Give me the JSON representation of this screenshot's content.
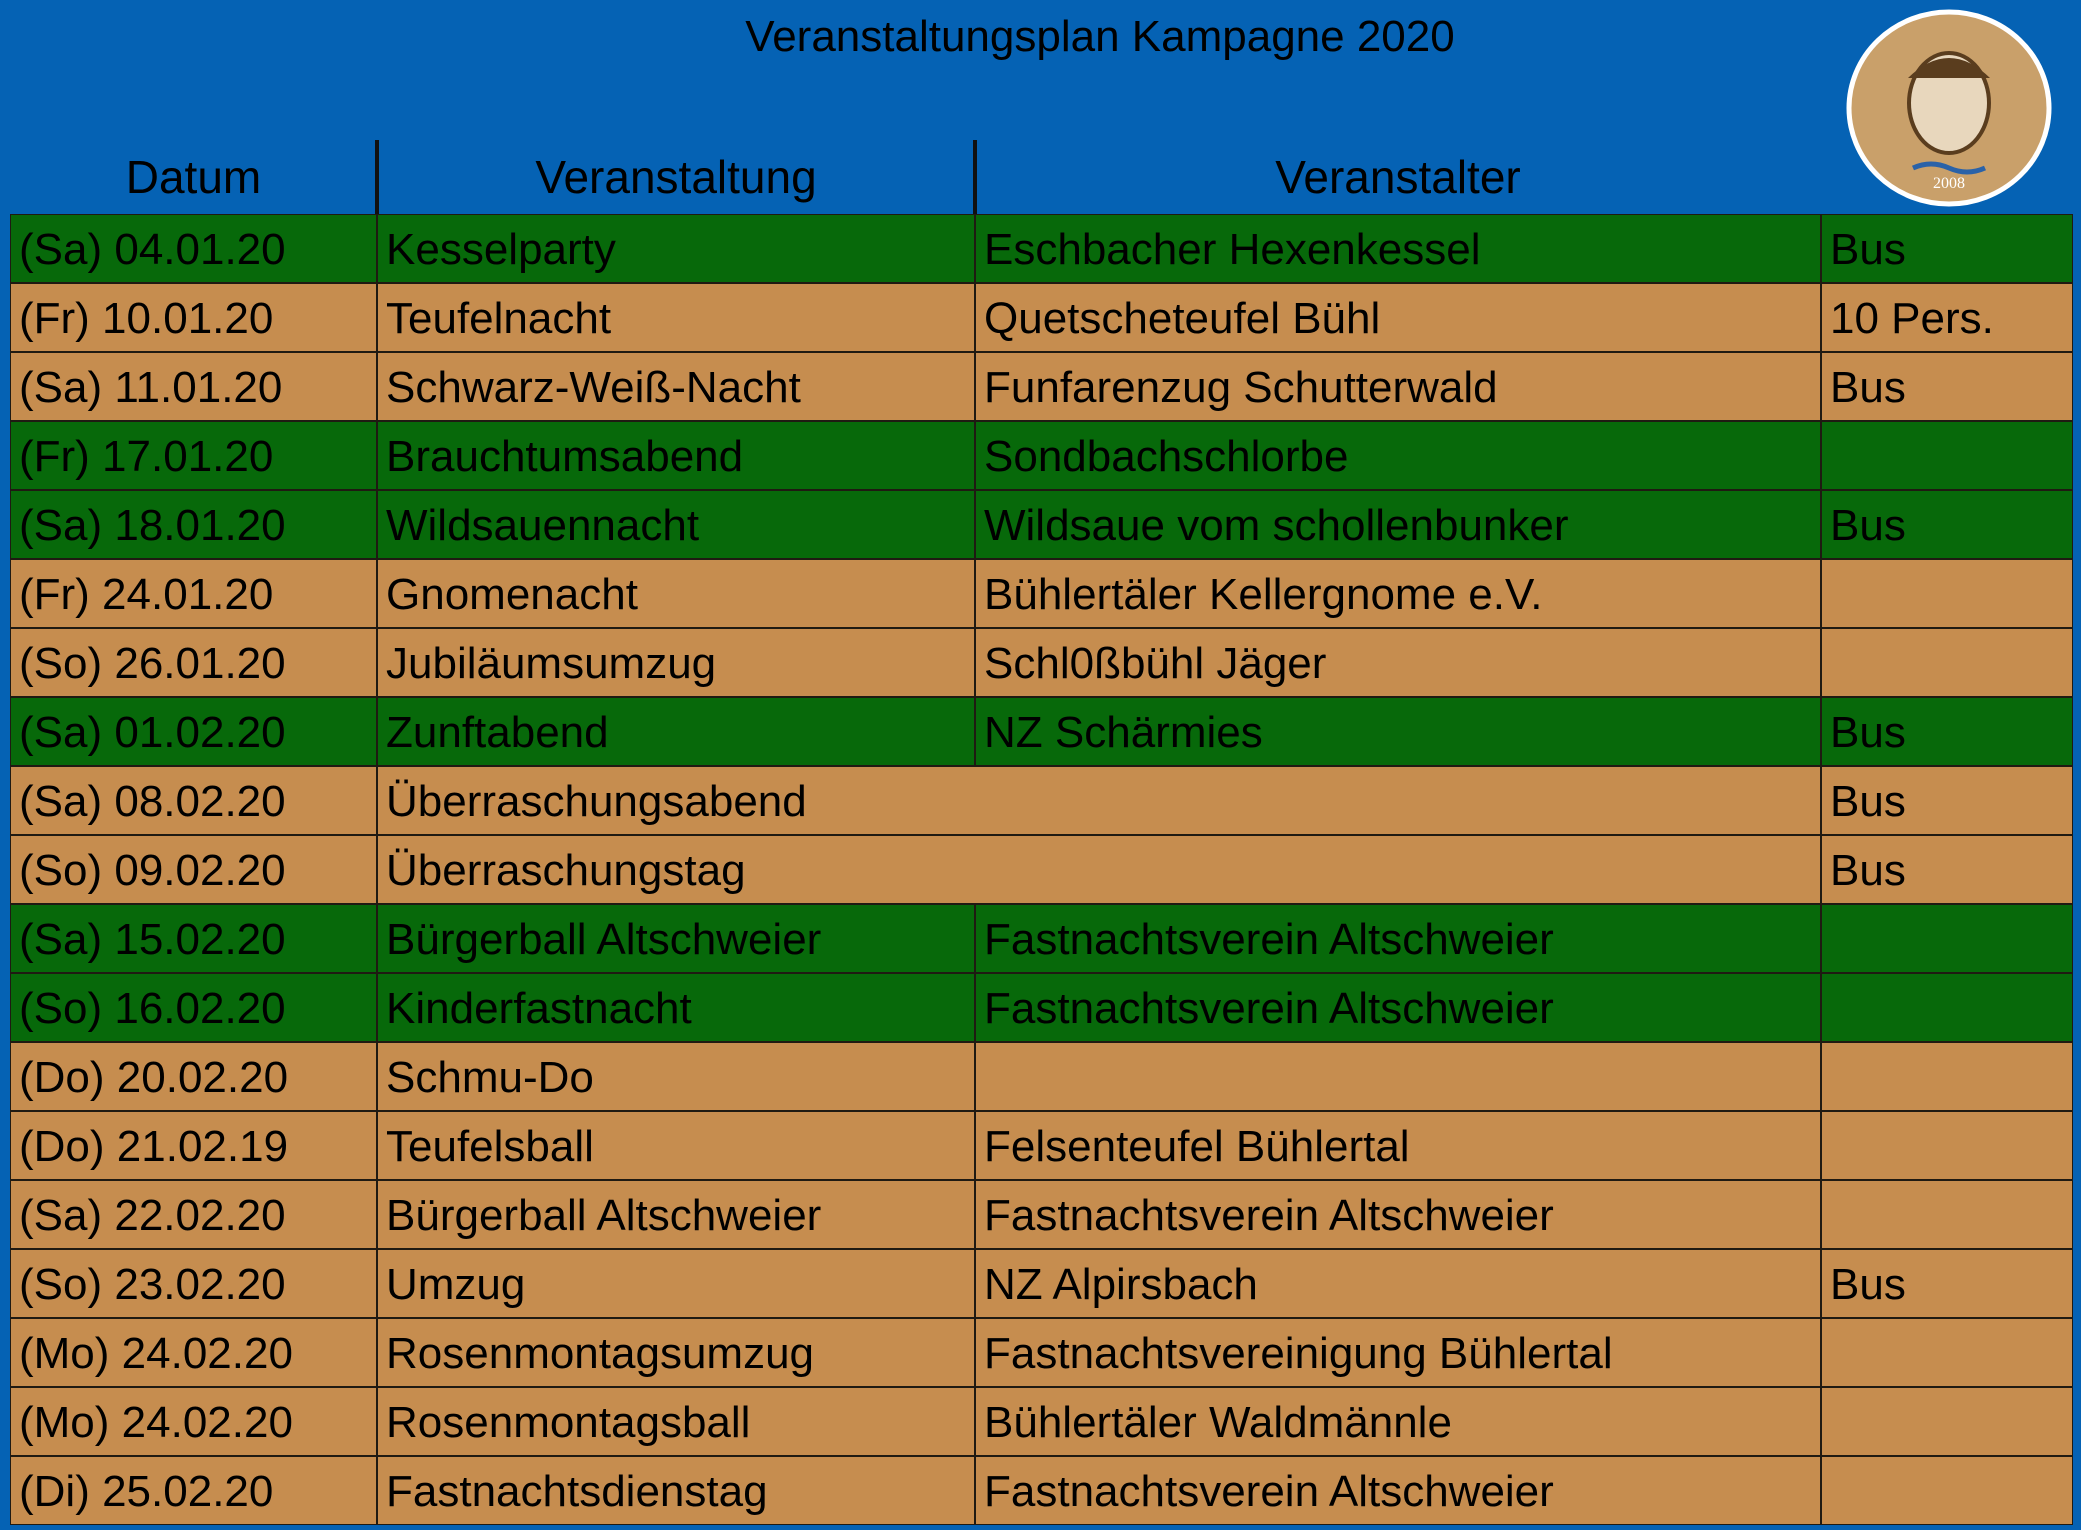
{
  "header": {
    "title": "Veranstaltungsplan Kampagne 2020",
    "columns": [
      "Datum",
      "Veranstaltung",
      "Veranstalter"
    ],
    "logo_year": "2008"
  },
  "table": {
    "colors": {
      "green": "#07690a",
      "tan": "#c68d4f"
    },
    "rows": [
      {
        "date": "(Sa) 04.01.20",
        "event": "Kesselparty",
        "organizer": "Eschbacher Hexenkessel",
        "note": "Bus",
        "color": "green"
      },
      {
        "date": "(Fr) 10.01.20",
        "event": "Teufelnacht",
        "organizer": "Quetscheteufel Bühl",
        "note": "10 Pers.",
        "color": "tan"
      },
      {
        "date": "(Sa) 11.01.20",
        "event": "Schwarz-Weiß-Nacht",
        "organizer": "Funfarenzug Schutterwald",
        "note": "Bus",
        "color": "tan"
      },
      {
        "date": "(Fr) 17.01.20",
        "event": "Brauchtumsabend",
        "organizer": "Sondbachschlorbe",
        "color": "green"
      },
      {
        "date": "(Sa) 18.01.20",
        "event": "Wildsauennacht",
        "organizer": "Wildsaue vom schollenbunker",
        "note": "Bus",
        "color": "green"
      },
      {
        "date": "(Fr) 24.01.20",
        "event": "Gnomenacht",
        "organizer": "Bühlertäler Kellergnome e.V.",
        "color": "tan"
      },
      {
        "date": "(So) 26.01.20",
        "event": "Jubiläumsumzug",
        "organizer": "Schl0ßbühl Jäger",
        "color": "tan"
      },
      {
        "date": "(Sa) 01.02.20",
        "event": "Zunftabend",
        "organizer": "NZ Schärmies",
        "note": "Bus",
        "color": "green"
      },
      {
        "date": "(Sa) 08.02.20",
        "event": "Überraschungsabend",
        "note": "Bus",
        "color": "tan",
        "merged": true
      },
      {
        "date": "(So) 09.02.20",
        "event": "Überraschungstag",
        "note": "Bus",
        "color": "tan",
        "merged": true
      },
      {
        "date": "(Sa) 15.02.20",
        "event": "Bürgerball Altschweier",
        "organizer": "Fastnachtsverein Altschweier",
        "color": "green"
      },
      {
        "date": "(So) 16.02.20",
        "event": "Kinderfastnacht",
        "organizer": "Fastnachtsverein Altschweier",
        "color": "green"
      },
      {
        "date": "(Do) 20.02.20",
        "event": "Schmu-Do",
        "color": "tan"
      },
      {
        "date": "(Do) 21.02.19",
        "event": "Teufelsball",
        "organizer": "Felsenteufel Bühlertal",
        "color": "tan"
      },
      {
        "date": "(Sa) 22.02.20",
        "event": "Bürgerball Altschweier",
        "organizer": "Fastnachtsverein Altschweier",
        "color": "tan"
      },
      {
        "date": "(So) 23.02.20",
        "event": "Umzug",
        "organizer": "NZ Alpirsbach",
        "note": "Bus",
        "color": "tan"
      },
      {
        "date": "(Mo) 24.02.20",
        "event": "Rosenmontagsumzug",
        "organizer": "Fastnachtsvereinigung Bühlertal",
        "color": "tan"
      },
      {
        "date": "(Mo) 24.02.20",
        "event": "Rosenmontagsball",
        "organizer": "Bühlertäler Waldmännle",
        "color": "tan"
      },
      {
        "date": "(Di) 25.02.20",
        "event": "Fastnachtsdienstag",
        "organizer": "Fastnachtsverein Altschweier",
        "color": "tan"
      }
    ]
  }
}
